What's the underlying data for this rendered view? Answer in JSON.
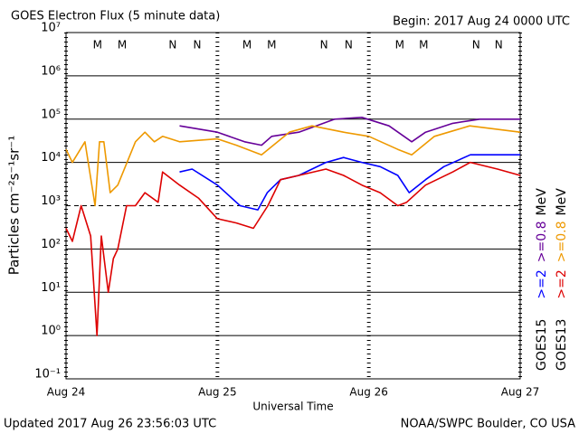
{
  "chart_data": {
    "type": "line",
    "title": "GOES Electron Flux (5 minute data)",
    "begin_label": "Begin: 2017 Aug 24 0000 UTC",
    "xlabel": "Universal Time",
    "ylabel": "Particles cm⁻²s⁻¹sr⁻¹",
    "footer_left": "Updated 2017 Aug 26 23:56:03 UTC",
    "footer_right": "NOAA/SWPC Boulder, CO USA",
    "legend_unit": "MeV",
    "log_y": true,
    "grid": true,
    "threshold": 1000,
    "xlim": [
      0,
      72
    ],
    "xticks": [
      {
        "value": 0,
        "label": "Aug 24"
      },
      {
        "value": 24,
        "label": "Aug 25"
      },
      {
        "value": 48,
        "label": "Aug 26"
      },
      {
        "value": 72,
        "label": "Aug 27"
      }
    ],
    "ylim": [
      0.1,
      10000000
    ],
    "yticks": [
      {
        "value": 0.1,
        "label": "10⁻¹"
      },
      {
        "value": 1,
        "label": "10⁰"
      },
      {
        "value": 10,
        "label": "10¹"
      },
      {
        "value": 100,
        "label": "10²"
      },
      {
        "value": 1000,
        "label": "10³"
      },
      {
        "value": 10000,
        "label": "10⁴"
      },
      {
        "value": 100000,
        "label": "10⁵"
      },
      {
        "value": 1000000,
        "label": "10⁶"
      },
      {
        "value": 10000000,
        "label": "10⁷"
      }
    ],
    "groups": [
      "GOES15",
      "GOES13"
    ],
    "series": [
      {
        "name": ">=2",
        "group": 0,
        "color": "#0000ff",
        "x": [
          18,
          20,
          24,
          27.6,
          30.4,
          31.9,
          34,
          36.9,
          41.2,
          44,
          46.9,
          49.8,
          52.6,
          54.4,
          57,
          59.9,
          64.1,
          68.4,
          72
        ],
        "values": [
          6000,
          7000,
          3000,
          1000,
          800,
          2000,
          4000,
          5000,
          10000,
          13000,
          10000,
          8000,
          5000,
          2000,
          4000,
          8000,
          15000,
          15000,
          15000
        ]
      },
      {
        "name": ">=0.8",
        "group": 0,
        "color": "#660099",
        "x": [
          18,
          24,
          28.3,
          31,
          32.6,
          36.9,
          42.6,
          46.9,
          51.2,
          54.8,
          57,
          61.3,
          65.6,
          72
        ],
        "values": [
          70000,
          50000,
          30000,
          25000,
          40000,
          50000,
          100000,
          110000,
          70000,
          30000,
          50000,
          80000,
          100000,
          100000
        ]
      },
      {
        "name": ">=2",
        "group": 1,
        "color": "#dd0000",
        "x": [
          0,
          1,
          2.4,
          3.9,
          4.9,
          5.6,
          6.7,
          7.5,
          8.2,
          9.6,
          11,
          12.5,
          14.6,
          15.3,
          18,
          21,
          24,
          27,
          29.7,
          32,
          34,
          36.9,
          41.2,
          44,
          46.9,
          49.8,
          52.6,
          54,
          57,
          61.3,
          64.1,
          68.4,
          72
        ],
        "values": [
          300,
          150,
          1000,
          200,
          1,
          200,
          10,
          60,
          100,
          1000,
          1000,
          2000,
          1200,
          6000,
          3000,
          1500,
          500,
          400,
          300,
          1000,
          4000,
          5000,
          7000,
          5000,
          3000,
          2000,
          1000,
          1200,
          3000,
          6000,
          10000,
          7000,
          5000
        ]
      },
      {
        "name": ">=0.8",
        "group": 1,
        "color": "#ee9900",
        "x": [
          0,
          1,
          3,
          4.6,
          5.3,
          6,
          7,
          8.2,
          11,
          12.5,
          14,
          15.3,
          18,
          24,
          27,
          31,
          35.4,
          39,
          44,
          48,
          52.6,
          54.8,
          58.4,
          64,
          72
        ],
        "values": [
          20000,
          10000,
          30000,
          1000,
          30000,
          30000,
          2000,
          3000,
          30000,
          50000,
          30000,
          40000,
          30000,
          35000,
          25000,
          15000,
          50000,
          70000,
          50000,
          40000,
          20000,
          15000,
          40000,
          70000,
          50000
        ]
      }
    ],
    "annotations": [
      {
        "x": 5,
        "text": "M",
        "color": "#dd0000"
      },
      {
        "x": 8.9,
        "text": "M",
        "color": "#0000ff"
      },
      {
        "x": 16.9,
        "text": "N",
        "color": "#dd0000"
      },
      {
        "x": 20.8,
        "text": "N",
        "color": "#0000ff"
      },
      {
        "x": 28.7,
        "text": "M",
        "color": "#dd0000"
      },
      {
        "x": 32.6,
        "text": "M",
        "color": "#0000ff"
      },
      {
        "x": 40.9,
        "text": "N",
        "color": "#dd0000"
      },
      {
        "x": 44.8,
        "text": "N",
        "color": "#0000ff"
      },
      {
        "x": 52.9,
        "text": "M",
        "color": "#dd0000"
      },
      {
        "x": 56.7,
        "text": "M",
        "color": "#0000ff"
      },
      {
        "x": 65,
        "text": "N",
        "color": "#dd0000"
      },
      {
        "x": 68.6,
        "text": "N",
        "color": "#0000ff"
      }
    ]
  }
}
